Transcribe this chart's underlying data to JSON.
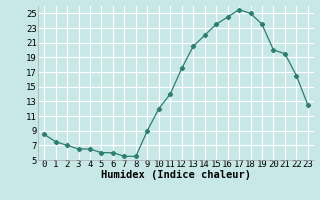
{
  "title": "",
  "xlabel": "Humidex (Indice chaleur)",
  "ylabel": "",
  "x": [
    0,
    1,
    2,
    3,
    4,
    5,
    6,
    7,
    8,
    9,
    10,
    11,
    12,
    13,
    14,
    15,
    16,
    17,
    18,
    19,
    20,
    21,
    22,
    23
  ],
  "y": [
    8.5,
    7.5,
    7.0,
    6.5,
    6.5,
    6.0,
    6.0,
    5.5,
    5.5,
    9.0,
    12.0,
    14.0,
    17.5,
    20.5,
    22.0,
    23.5,
    24.5,
    25.5,
    25.0,
    23.5,
    20.0,
    19.5,
    16.5,
    12.5
  ],
  "line_color": "#2e7d6e",
  "marker": "D",
  "marker_size": 2.2,
  "background_color": "#c8e8e8",
  "grid_color": "#ffffff",
  "ylim": [
    5,
    26
  ],
  "xlim": [
    -0.5,
    23.5
  ],
  "yticks": [
    5,
    7,
    9,
    11,
    13,
    15,
    17,
    19,
    21,
    23,
    25
  ],
  "xtick_labels": [
    "0",
    "1",
    "2",
    "3",
    "4",
    "5",
    "6",
    "7",
    "8",
    "9",
    "10",
    "11",
    "12",
    "13",
    "14",
    "15",
    "16",
    "17",
    "18",
    "19",
    "20",
    "21",
    "22",
    "23"
  ],
  "xlabel_fontsize": 7.5,
  "tick_fontsize": 6.5
}
